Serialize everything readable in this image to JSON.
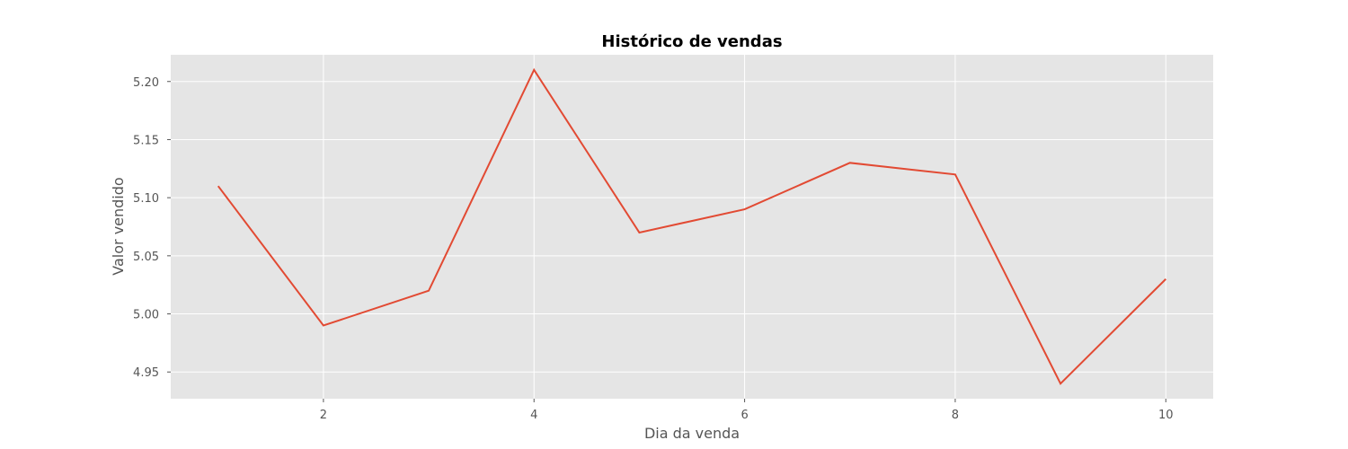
{
  "chart_data": {
    "type": "line",
    "title": "Histórico de vendas",
    "xlabel": "Dia da venda",
    "ylabel": "Valor vendido",
    "x": [
      1,
      2,
      3,
      4,
      5,
      6,
      7,
      8,
      9,
      10
    ],
    "series": [
      {
        "values": [
          5.11,
          4.99,
          5.02,
          5.21,
          5.07,
          5.09,
          5.13,
          5.12,
          4.94,
          5.03
        ],
        "color": "#E24A33"
      }
    ],
    "xlim": [
      0.55,
      10.45
    ],
    "ylim": [
      4.927,
      5.223
    ],
    "x_ticks": [
      2,
      4,
      6,
      8,
      10
    ],
    "x_tick_labels": [
      "2",
      "4",
      "6",
      "8",
      "10"
    ],
    "y_ticks": [
      4.95,
      5.0,
      5.05,
      5.1,
      5.15,
      5.2
    ],
    "y_tick_labels": [
      "4.95",
      "5.00",
      "5.05",
      "5.10",
      "5.15",
      "5.20"
    ],
    "grid": true,
    "plot_background": "#E5E5E5",
    "grid_color": "#FFFFFF"
  }
}
